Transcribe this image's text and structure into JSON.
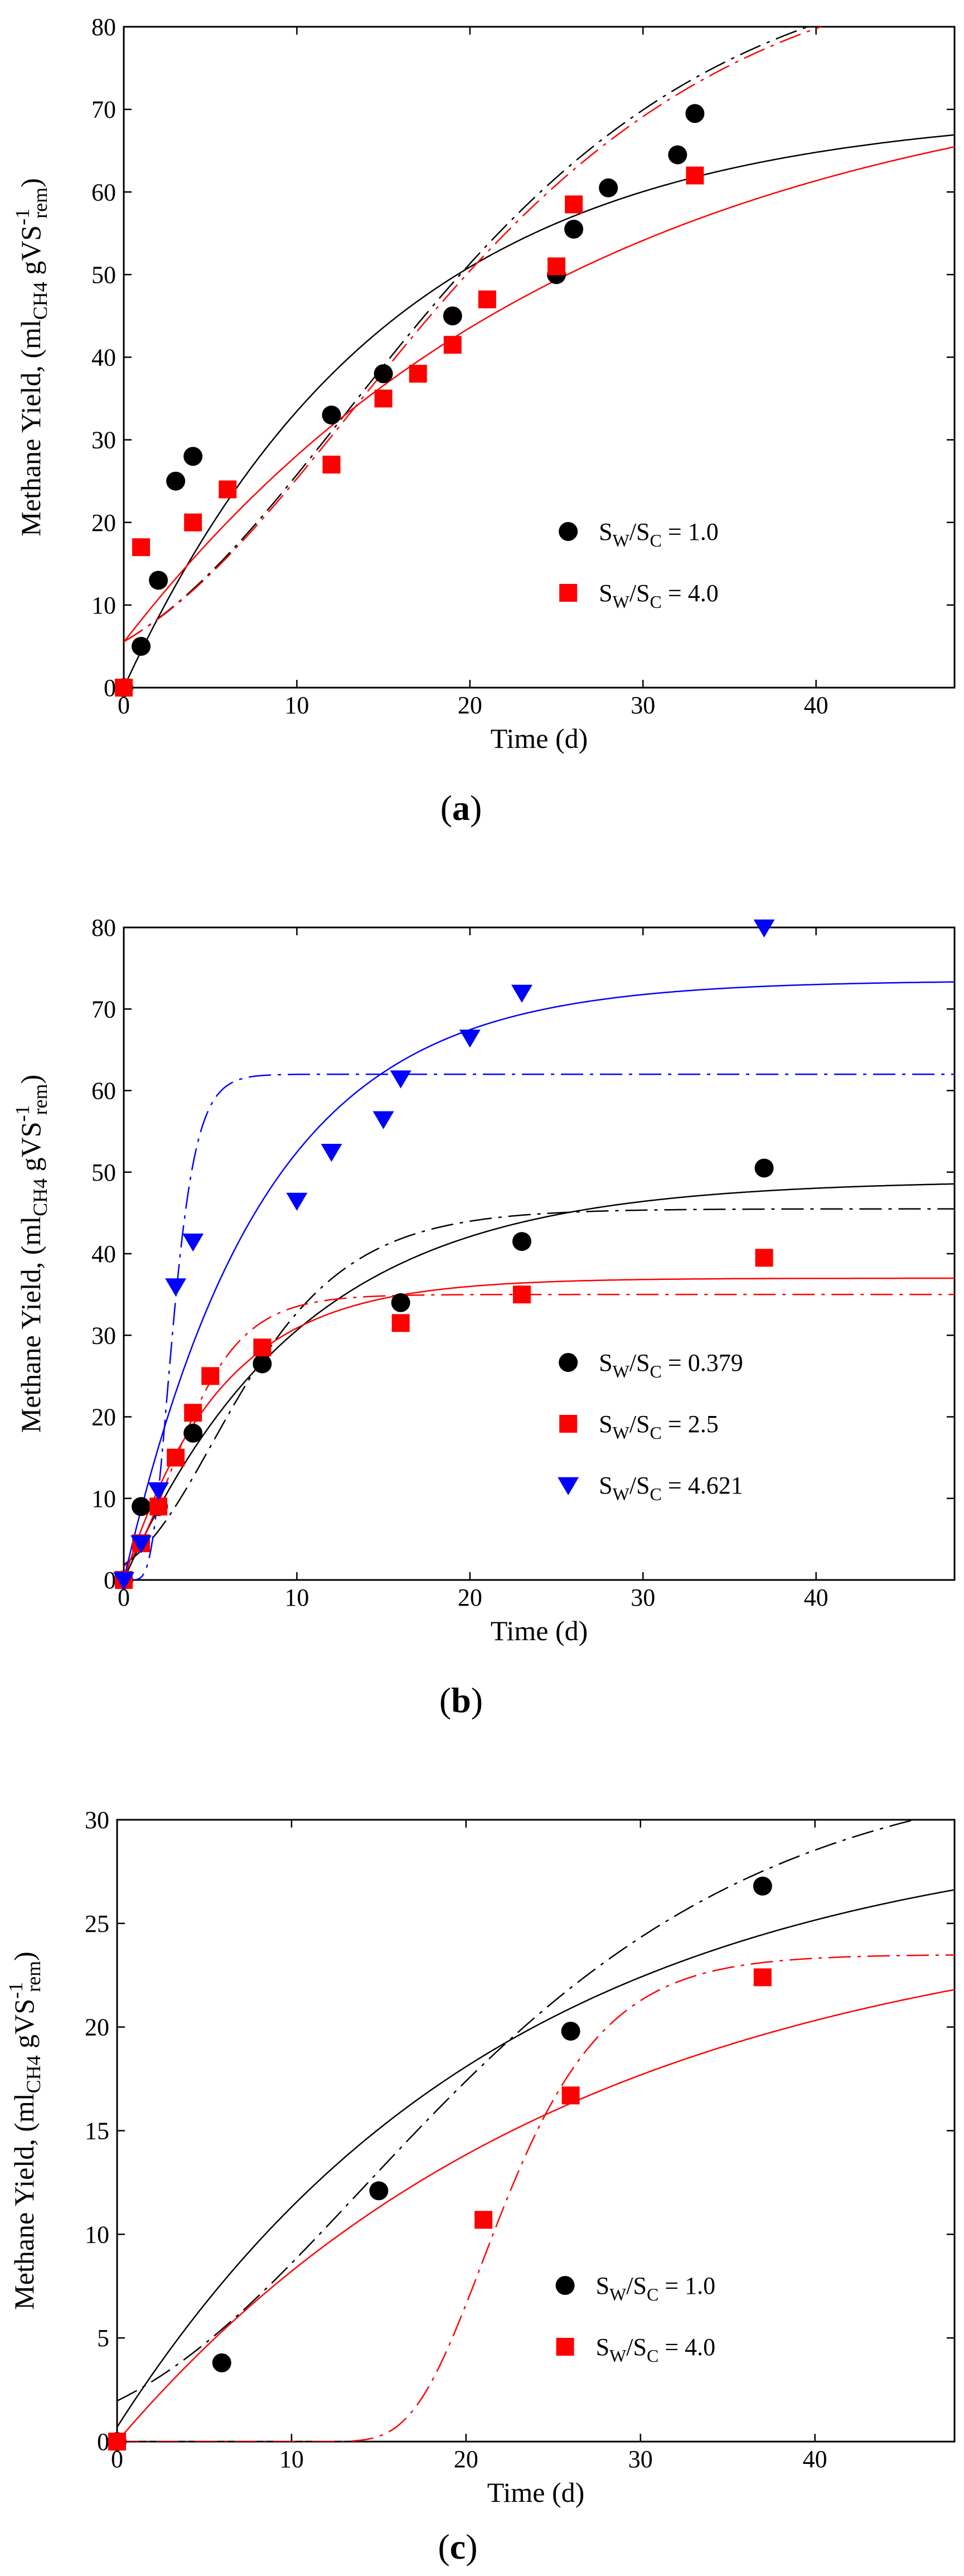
{
  "figure_labels": [
    "(a)",
    "(b)",
    "(c)"
  ],
  "colors": {
    "black": "#000000",
    "red": "#ff0000",
    "blue": "#0000ff"
  },
  "chart_data": [
    {
      "id": "a",
      "type": "scatter",
      "panel_label": "(a)",
      "panel_letter": "a",
      "xlabel": "Time (d)",
      "ylabel": "Methane Yield, (ml",
      "ylabel_parts": {
        "pre": "Methane Yield, (ml",
        "sub1": "CH4",
        "mid": " gVS",
        "sup": "-1",
        "sub2": "rem",
        "post": ")"
      },
      "xlim": [
        0,
        48
      ],
      "ylim": [
        0,
        80
      ],
      "xticks": [
        0,
        10,
        20,
        30,
        40
      ],
      "yticks": [
        0,
        10,
        20,
        30,
        40,
        50,
        60,
        70,
        80
      ],
      "legend_position": "lower-right",
      "series": [
        {
          "name": "S_W/S_C = 1.0",
          "legend": {
            "pre": "S",
            "sub1": "W",
            "mid": "/S",
            "sub2": "C",
            "post": " = 1.0"
          },
          "marker": "circle",
          "color": "#000000",
          "x": [
            0,
            1,
            2,
            3,
            4,
            12,
            15,
            19,
            25,
            26,
            28,
            32,
            33
          ],
          "y": [
            0,
            5,
            13,
            25,
            28,
            33,
            38,
            45,
            50,
            55.5,
            60.5,
            64.5,
            69.5
          ],
          "fits": [
            {
              "style": "solid",
              "model": "firstorder",
              "params": {
                "A": 70,
                "k": 0.065,
                "c": 0
              }
            },
            {
              "style": "dashdot",
              "model": "gompertz",
              "params": {
                "P": 90,
                "R": 2.65,
                "L": 0.3
              }
            }
          ]
        },
        {
          "name": "S_W/S_C = 4.0",
          "legend": {
            "pre": "S",
            "sub1": "W",
            "mid": "/S",
            "sub2": "C",
            "post": " = 4.0"
          },
          "marker": "square",
          "color": "#ff0000",
          "x": [
            0,
            1,
            4,
            6,
            12,
            15,
            17,
            19,
            21,
            25,
            26,
            33
          ],
          "y": [
            0,
            17,
            20,
            24,
            27,
            35,
            38,
            41.5,
            47,
            51,
            58.5,
            62
          ],
          "fits": [
            {
              "style": "solid",
              "model": "firstorder",
              "params": {
                "A": 77,
                "k": 0.038,
                "c": 5.5
              }
            },
            {
              "style": "dashdot",
              "model": "gompertz",
              "params": {
                "P": 90,
                "R": 2.6,
                "L": 0.3
              }
            }
          ]
        }
      ]
    },
    {
      "id": "b",
      "type": "scatter",
      "panel_label": "(b)",
      "panel_letter": "b",
      "xlabel": "Time (d)",
      "ylabel": "Methane Yield, (ml",
      "ylabel_parts": {
        "pre": "Methane Yield, (ml",
        "sub1": "CH4",
        "mid": " gVS",
        "sup": "-1",
        "sub2": "rem",
        "post": ")"
      },
      "xlim": [
        0,
        48
      ],
      "ylim": [
        0,
        80
      ],
      "xticks": [
        0,
        10,
        20,
        30,
        40
      ],
      "yticks": [
        0,
        10,
        20,
        30,
        40,
        50,
        60,
        70,
        80
      ],
      "legend_position": "lower-right",
      "series": [
        {
          "name": "S_W/S_C = 0.379",
          "legend": {
            "pre": "S",
            "sub1": "W",
            "mid": "/S",
            "sub2": "C",
            "post": " = 0.379"
          },
          "marker": "circle",
          "color": "#000000",
          "x": [
            0,
            1,
            2,
            4,
            8,
            16,
            23,
            37
          ],
          "y": [
            0,
            9,
            9,
            18,
            26.5,
            34,
            41.5,
            50.5
          ],
          "fits": [
            {
              "style": "solid",
              "model": "firstorder",
              "params": {
                "A": 49,
                "k": 0.098,
                "c": 0
              }
            },
            {
              "style": "dashdot",
              "model": "gompertz",
              "params": {
                "P": 45.5,
                "R": 3.8,
                "L": 0.7
              }
            }
          ]
        },
        {
          "name": "S_W/S_C = 2.5",
          "legend": {
            "pre": "S",
            "sub1": "W",
            "mid": "/S",
            "sub2": "C",
            "post": " = 2.5"
          },
          "marker": "square",
          "color": "#ff0000",
          "x": [
            0,
            1,
            2,
            3,
            4,
            5,
            8,
            16,
            23,
            37
          ],
          "y": [
            0,
            4.5,
            9,
            15,
            20.5,
            25,
            28.5,
            31.5,
            35,
            39.5
          ],
          "fits": [
            {
              "style": "solid",
              "model": "firstorder",
              "params": {
                "A": 37,
                "k": 0.18,
                "c": 0
              }
            },
            {
              "style": "dashdot",
              "model": "gompertz",
              "params": {
                "P": 35,
                "R": 5.5,
                "L": 0.3
              }
            }
          ]
        },
        {
          "name": "S_W/S_C = 4.621",
          "legend": {
            "pre": "S",
            "sub1": "W",
            "mid": "/S",
            "sub2": "C",
            "post": " = 4.621"
          },
          "marker": "triangle-down",
          "color": "#0000ff",
          "x": [
            0,
            1,
            2,
            3,
            4,
            10,
            12,
            15,
            16,
            20,
            23,
            37
          ],
          "y": [
            0,
            4.5,
            11,
            36,
            41.5,
            46.5,
            52.5,
            56.5,
            61.5,
            66.5,
            72,
            80
          ],
          "fits": [
            {
              "style": "solid",
              "model": "firstorder",
              "params": {
                "A": 73.5,
                "k": 0.125,
                "c": 0
              }
            },
            {
              "style": "dashdot",
              "model": "gompertz",
              "params": {
                "P": 62,
                "R": 25,
                "L": 1.6
              }
            }
          ]
        }
      ]
    },
    {
      "id": "c",
      "type": "scatter",
      "panel_label": "(c)",
      "panel_letter": "c",
      "xlabel": "Time (d)",
      "ylabel": "Methane Yield, (ml",
      "ylabel_parts": {
        "pre": "Methane Yield, (ml",
        "sub1": "CH4",
        "mid": " gVS",
        "sup": "-1",
        "sub2": "rem",
        "post": ")"
      },
      "xlim": [
        0,
        48
      ],
      "ylim": [
        0,
        30
      ],
      "xticks": [
        0,
        10,
        20,
        30,
        40
      ],
      "yticks": [
        0,
        5,
        10,
        15,
        20,
        25,
        30
      ],
      "legend_position": "lower-right",
      "series": [
        {
          "name": "S_W/S_C = 1.0",
          "legend": {
            "pre": "S",
            "sub1": "W",
            "mid": "/S",
            "sub2": "C",
            "post": " = 1.0"
          },
          "marker": "circle",
          "color": "#000000",
          "x": [
            0,
            6,
            15,
            26,
            37
          ],
          "y": [
            0,
            3.8,
            12.1,
            19.8,
            26.8
          ],
          "fits": [
            {
              "style": "solid",
              "model": "firstorder",
              "params": {
                "A": 30,
                "k": 0.045,
                "c": 0.7
              }
            },
            {
              "style": "dashdot",
              "model": "gompertz",
              "params": {
                "P": 33,
                "R": 0.9,
                "L": 0.5
              }
            }
          ]
        },
        {
          "name": "S_W/S_C = 4.0",
          "legend": {
            "pre": "S",
            "sub1": "W",
            "mid": "/S",
            "sub2": "C",
            "post": " = 4.0"
          },
          "marker": "square",
          "color": "#ff0000",
          "x": [
            0,
            21,
            26,
            37
          ],
          "y": [
            0,
            10.7,
            16.7,
            22.4
          ],
          "fits": [
            {
              "style": "solid",
              "model": "firstorder",
              "params": {
                "A": 26,
                "k": 0.038,
                "c": 0
              }
            },
            {
              "style": "dashdot",
              "model": "gompertz",
              "params": {
                "P": 23.5,
                "R": 2.2,
                "L": 17
              }
            }
          ]
        }
      ]
    }
  ]
}
